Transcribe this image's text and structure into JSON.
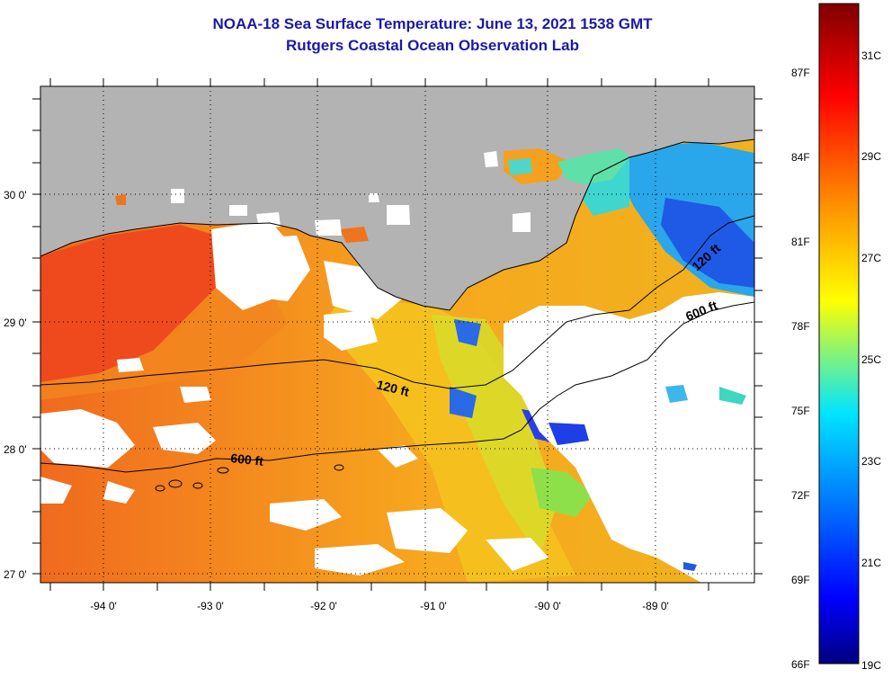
{
  "title": {
    "line1": "NOAA-18 Sea Surface Temperature:  June 13, 2021 1538 GMT",
    "line2": "Rutgers Coastal Ocean Observation Lab"
  },
  "map": {
    "lat_labels": [
      "30 0'",
      "29 0'",
      "28 0'",
      "27 0'"
    ],
    "lon_labels": [
      "-94 0'",
      "-93 0'",
      "-92 0'",
      "-91 0'",
      "-90 0'",
      "-89 0'"
    ],
    "contour_labels": [
      "120 ft",
      "600 ft",
      "120 ft",
      "600 ft"
    ],
    "land_color": "#b3b3b3",
    "cloud_color": "#ffffff"
  },
  "colorbar": {
    "fahrenheit_labels": [
      "87F",
      "84F",
      "81F",
      "78F",
      "75F",
      "72F",
      "69F",
      "66F"
    ],
    "celsius_labels": [
      "31C",
      "29C",
      "27C",
      "25C",
      "23C",
      "21C",
      "19C"
    ],
    "colors": [
      "#7f0000",
      "#ff0000",
      "#ff8000",
      "#ffff00",
      "#00ffff",
      "#0080ff",
      "#0000ff",
      "#00007f"
    ]
  }
}
